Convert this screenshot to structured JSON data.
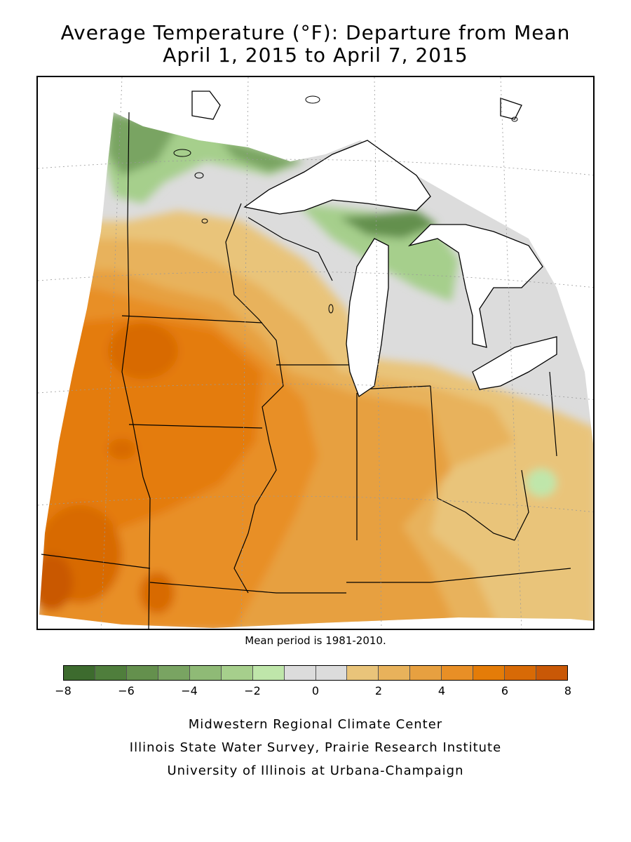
{
  "title": {
    "line1": "Average Temperature (°F): Departure from Mean",
    "line2": "April 1, 2015 to April 7, 2015"
  },
  "map": {
    "region": "Midwest United States",
    "ocean_lake_color": "#ffffff",
    "boundary_color": "#000000"
  },
  "note": "Mean period is 1981-2010.",
  "legend": {
    "min": -8,
    "max": 8,
    "tick_labels": [
      "-8",
      "-6",
      "-4",
      "-2",
      "0",
      "2",
      "4",
      "6",
      "8"
    ],
    "colors": [
      "#3d6b2e",
      "#4f7e3c",
      "#64904d",
      "#79a462",
      "#8fba76",
      "#a6cf8c",
      "#bfe6aa",
      "#dcdcdc",
      "#dcdcdc",
      "#e9c47a",
      "#e8b25b",
      "#e7a040",
      "#e88f26",
      "#e47c08",
      "#d86a06",
      "#c95806"
    ]
  },
  "credits": [
    "Midwestern Regional Climate Center",
    "Illinois State Water Survey, Prairie Research Institute",
    "University of Illinois at Urbana-Champaign"
  ]
}
